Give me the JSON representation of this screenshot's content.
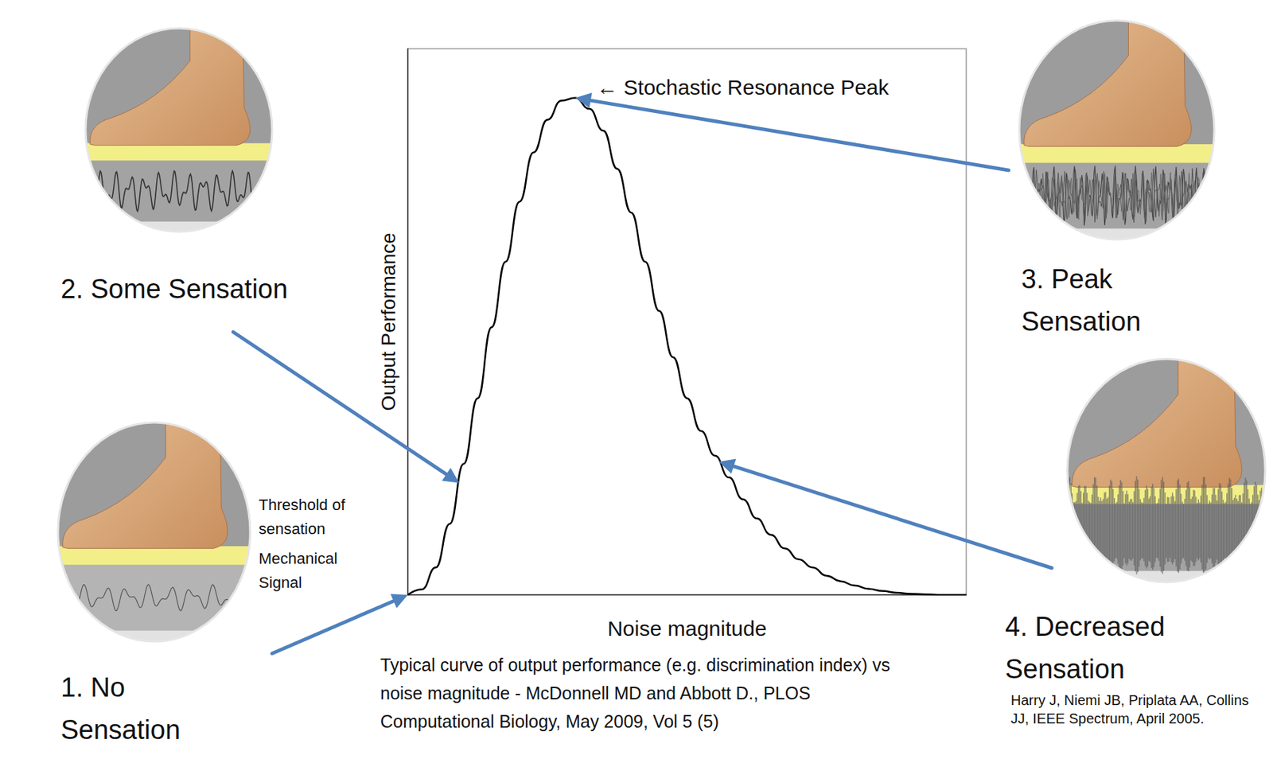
{
  "chart_data": {
    "type": "line",
    "x_label": "Noise magnitude",
    "y_label": "Output Performance",
    "x": [
      0,
      2.5,
      5,
      7.5,
      10,
      12.5,
      15,
      17.5,
      20,
      22.5,
      25,
      27.5,
      30,
      32.5,
      35,
      37.5,
      40,
      42.5,
      45,
      47.5,
      50,
      52.5,
      55,
      57.5,
      60,
      62.5,
      65,
      67.5,
      70,
      72.5,
      75,
      77.5,
      80,
      82.5,
      85,
      87.5,
      90,
      92.5,
      95,
      97.5,
      100
    ],
    "values": [
      0,
      1,
      5,
      13,
      24,
      36,
      49,
      61,
      72,
      81,
      87,
      90.5,
      91,
      89,
      85,
      78,
      70,
      61,
      52,
      43.5,
      36,
      30,
      25.5,
      21.5,
      17.5,
      14,
      11,
      8.5,
      6.5,
      5,
      3.5,
      2.5,
      1.7,
      1.1,
      0.7,
      0.4,
      0.2,
      0.1,
      0,
      0,
      0
    ],
    "color": "#000000",
    "xlim": [
      0,
      100
    ],
    "ylim": [
      0,
      100
    ],
    "tick_labels": false,
    "grid": false,
    "annotations": [
      {
        "text": "← Stochastic Resonance Peak",
        "x": 30,
        "y": 91
      }
    ]
  },
  "callouts": [
    {
      "label": "1. No Sensation",
      "x": 0,
      "y": 0,
      "notes": [
        "Threshold of sensation",
        "Mechanical Signal"
      ]
    },
    {
      "label": "2. Some Sensation",
      "x": 9.2,
      "y": 20.5
    },
    {
      "label": "3. Peak Sensation",
      "x": 30,
      "y": 91
    },
    {
      "label": "4. Decreased Sensation",
      "x": 55.7,
      "y": 24.4
    }
  ],
  "caption": "Typical curve of output performance (e.g. discrimination index) vs noise magnitude - McDonnell MD and Abbott D., PLOS Computational Biology, May 2009, Vol 5 (5)",
  "citation": "Harry J, Niemi JB, Priplata AA, Collins JJ, IEEE Spectrum, April 2005."
}
